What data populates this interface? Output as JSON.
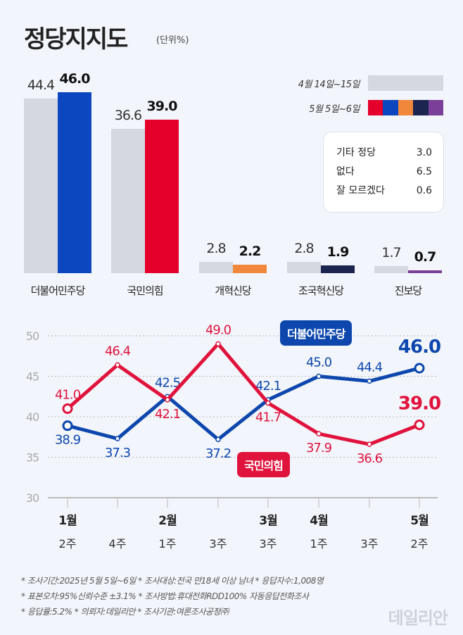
{
  "header": {
    "title": "정당지지도",
    "unit": "(단위%)"
  },
  "legend": {
    "prev_label": "4월 14일~15일",
    "curr_label": "5월 5일~6일",
    "prev_color": "#d5d8e0",
    "curr_colors": [
      "#e4002b",
      "#0d47c0",
      "#f0873a",
      "#1b2550",
      "#7a3f98"
    ]
  },
  "others": [
    {
      "label": "기타 정당",
      "value": "3.0"
    },
    {
      "label": "없다",
      "value": "6.5"
    },
    {
      "label": "잘 모르겠다",
      "value": "0.6"
    }
  ],
  "chart_data": [
    {
      "type": "bar",
      "categories": [
        "더불어민주당",
        "국민의힘",
        "개혁신당",
        "조국혁신당",
        "진보당"
      ],
      "series": [
        {
          "name": "4월 14일~15일",
          "values": [
            44.4,
            36.6,
            2.8,
            2.8,
            1.7
          ],
          "color": "#d5d8e0"
        },
        {
          "name": "5월 5일~6일",
          "values": [
            46.0,
            39.0,
            2.2,
            1.9,
            0.7
          ],
          "colors": [
            "#0d47c0",
            "#e4002b",
            "#f0873a",
            "#1b2550",
            "#7a3f98"
          ]
        }
      ]
    },
    {
      "type": "line",
      "categories": [
        [
          "1월",
          "2주"
        ],
        [
          "",
          "4주"
        ],
        [
          "2월",
          "1주"
        ],
        [
          "",
          "3주"
        ],
        [
          "3월",
          "3주"
        ],
        [
          "4월",
          "1주"
        ],
        [
          "",
          "3주"
        ],
        [
          "5월",
          "2주"
        ]
      ],
      "ylim": [
        30,
        50
      ],
      "yticks": [
        30,
        35,
        40,
        45,
        50
      ],
      "grid": true,
      "series": [
        {
          "name": "더불어민주당",
          "color": "#0d47ad",
          "values": [
            38.9,
            37.3,
            42.5,
            37.2,
            42.1,
            45.0,
            44.4,
            46.0
          ]
        },
        {
          "name": "국민의힘",
          "color": "#e0133c",
          "values": [
            41.0,
            46.4,
            42.1,
            49.0,
            41.7,
            37.9,
            36.6,
            39.0
          ]
        }
      ]
    }
  ],
  "footer": [
    "* 조사기간:2025년 5월 5일~6일  * 조사대상:전국 만18세 이상 남녀  * 응답자수:1,008명",
    "* 표본오차:95%신뢰수준 ±3.1%  * 조사방법:휴대전화RDD100% 자동응답전화조사",
    "* 응답률:5.2%  * 의뢰자:데일리안  * 조사기관:여론조사공정㈜"
  ],
  "logo": "데일리안"
}
